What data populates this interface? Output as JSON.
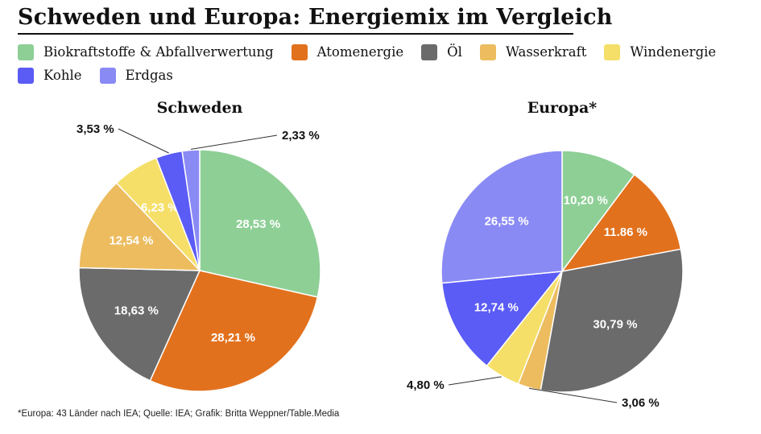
{
  "title": "Schweden und Europa: Energiemix im Vergleich",
  "footnote": "*Europa: 43 Länder nach IEA; Quelle: IEA; Grafik: Britta Weppner/Table.Media",
  "legend": [
    {
      "label": "Biokraftstoffe & Abfallverwertung",
      "color": "#8ecf96"
    },
    {
      "label": "Atomenergie",
      "color": "#e2711d"
    },
    {
      "label": "Öl",
      "color": "#6b6b6b"
    },
    {
      "label": "Wasserkraft",
      "color": "#ecbc5f"
    },
    {
      "label": "Windenergie",
      "color": "#f5df68"
    },
    {
      "label": "Kohle",
      "color": "#5b5bf5"
    },
    {
      "label": "Erdgas",
      "color": "#8a8af5"
    }
  ],
  "chart_data": [
    {
      "type": "pie",
      "title": "Schweden",
      "categories": [
        "Biokraftstoffe & Abfallverwertung",
        "Atomenergie",
        "Öl",
        "Wasserkraft",
        "Windenergie",
        "Kohle",
        "Erdgas"
      ],
      "values": [
        28.53,
        28.21,
        18.63,
        12.54,
        6.23,
        3.53,
        2.33
      ],
      "labels": [
        "28,53 %",
        "28,21 %",
        "18,63 %",
        "12,54 %",
        "6,23 %",
        "3,53 %",
        "2,33 %"
      ]
    },
    {
      "type": "pie",
      "title": "Europa*",
      "categories": [
        "Biokraftstoffe & Abfallverwertung",
        "Atomenergie",
        "Öl",
        "Wasserkraft",
        "Windenergie",
        "Kohle",
        "Erdgas"
      ],
      "values": [
        10.2,
        11.86,
        30.79,
        3.06,
        4.8,
        12.74,
        26.55
      ],
      "labels": [
        "10,20 %",
        "11.86 %",
        "30,79 %",
        "3,06 %",
        "4,80 %",
        "12,74 %",
        "26,55 %"
      ]
    }
  ]
}
